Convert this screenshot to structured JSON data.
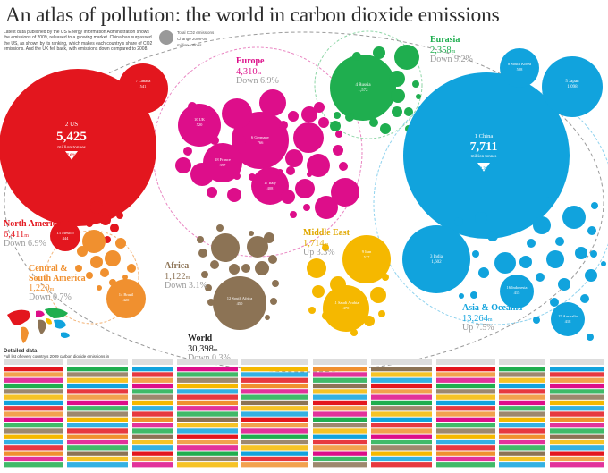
{
  "title": "An atlas of pollution: the world in carbon dioxide emissions",
  "intro": "Latest data published by the US Energy Information Administration shows the emissions of 2009, released to a growing market. China has surpassed the US, as shown by its ranking, which makes each country's share of CO2 emissions. And the UK fell back, with emissions down compared to 2008.",
  "key_notes": [
    "Total CO2 emissions",
    "Change 2008-09",
    "million tonnes"
  ],
  "detailed_data_label": "Detailed data",
  "detailed_data_note": "Full list of every country's 2009 carbon dioxide emissions in the world, in alphabetical order",
  "colors": {
    "north_america": "#e3161e",
    "central_south_america": "#f0902f",
    "europe": "#dd0e8a",
    "eurasia": "#1fae4f",
    "africa": "#8c7355",
    "middle_east": "#f5b800",
    "asia_oceania": "#11a3dd"
  },
  "chart_data": {
    "type": "bubble",
    "units": "million tonnes",
    "total": {
      "name": "World",
      "value": "30,398",
      "unit": "m",
      "change": "Down 0.3%"
    },
    "regions": [
      {
        "id": "north_america",
        "name": "North America",
        "value": "6,411",
        "unit": "m",
        "change": "Down 6.9%"
      },
      {
        "id": "central_south_america",
        "name": "Central & South America",
        "value": "1,220",
        "unit": "m",
        "change": "Down 0.7%"
      },
      {
        "id": "europe",
        "name": "Europe",
        "value": "4,310",
        "unit": "m",
        "change": "Down 6.9%"
      },
      {
        "id": "eurasia",
        "name": "Eurasia",
        "value": "2,358",
        "unit": "m",
        "change": "Down 9.2%"
      },
      {
        "id": "africa",
        "name": "Africa",
        "value": "1,122",
        "unit": "m",
        "change": "Down 3.1%"
      },
      {
        "id": "middle_east",
        "name": "Middle East",
        "value": "1,714",
        "unit": "m",
        "change": "Up 3.3%"
      },
      {
        "id": "asia_oceania",
        "name": "Asia & Oceania",
        "value": "13,264",
        "unit": "m",
        "change": "Up 7.5%"
      }
    ],
    "countries": [
      {
        "rank": 1,
        "name": "China",
        "value": 7711,
        "change": "13.3%",
        "region": "asia_oceania"
      },
      {
        "rank": 2,
        "name": "US",
        "value": 5425,
        "change": "7.0%",
        "region": "north_america"
      },
      {
        "rank": 3,
        "name": "India",
        "value": 1602,
        "change": "",
        "region": "asia_oceania"
      },
      {
        "rank": 4,
        "name": "Russia",
        "value": 1572,
        "change": "",
        "region": "eurasia"
      },
      {
        "rank": 5,
        "name": "Japan",
        "value": 1098,
        "change": "",
        "region": "asia_oceania"
      },
      {
        "rank": 6,
        "name": "Germany",
        "value": 766,
        "change": "",
        "region": "europe"
      },
      {
        "rank": 7,
        "name": "Canada",
        "value": 541,
        "change": "",
        "region": "north_america"
      },
      {
        "rank": 8,
        "name": "South Korea",
        "value": 528,
        "change": "",
        "region": "asia_oceania"
      },
      {
        "rank": 9,
        "name": "Iran",
        "value": 527,
        "change": "",
        "region": "middle_east"
      },
      {
        "rank": 10,
        "name": "UK",
        "value": 520,
        "change": "",
        "region": "europe"
      },
      {
        "rank": 11,
        "name": "Saudi Arabia",
        "value": 470,
        "change": "",
        "region": "middle_east"
      },
      {
        "rank": 12,
        "name": "South Africa",
        "value": 450,
        "change": "",
        "region": "africa"
      },
      {
        "rank": 13,
        "name": "Mexico",
        "value": 444,
        "change": "",
        "region": "north_america"
      },
      {
        "rank": 14,
        "name": "Brazil",
        "value": 420,
        "change": "",
        "region": "central_south_america"
      },
      {
        "rank": 15,
        "name": "Australia",
        "value": 418,
        "change": "",
        "region": "asia_oceania"
      },
      {
        "rank": 16,
        "name": "Indonesia",
        "value": 415,
        "change": "",
        "region": "asia_oceania"
      },
      {
        "rank": 17,
        "name": "Italy",
        "value": 408,
        "change": "",
        "region": "europe"
      },
      {
        "rank": 18,
        "name": "France",
        "value": 397,
        "change": "",
        "region": "europe"
      }
    ]
  },
  "bubble_labels": {
    "us": {
      "name": "2 US",
      "value": "5,425",
      "unit": "million tonnes",
      "change": "7.0%"
    },
    "china": {
      "name": "1 China",
      "value": "7,711",
      "unit": "million tonnes",
      "change": "13.3%"
    },
    "canada": {
      "name": "7 Canada",
      "value": "541"
    },
    "mexico": {
      "name": "13 Mexico",
      "value": "444"
    },
    "brazil": {
      "name": "14 Brazil",
      "value": "420"
    },
    "uk": {
      "name": "10 UK",
      "value": "520"
    },
    "germany": {
      "name": "6 Germany",
      "value": "766"
    },
    "france": {
      "name": "18 France",
      "value": "397"
    },
    "italy": {
      "name": "17 Italy",
      "value": "408"
    },
    "russia": {
      "name": "4 Russia",
      "value": "1,572"
    },
    "south_korea": {
      "name": "8 South Korea",
      "value": "528"
    },
    "japan": {
      "name": "5 Japan",
      "value": "1,098"
    },
    "india": {
      "name": "3 India",
      "value": "1,602"
    },
    "indonesia": {
      "name": "16 Indonesia",
      "value": "415"
    },
    "australia": {
      "name": "15 Australia",
      "value": "418"
    },
    "south_africa": {
      "name": "12 South Africa",
      "value": "450"
    },
    "iran": {
      "name": "9 Iran",
      "value": "527"
    },
    "saudi": {
      "name": "11 Saudi Arabia",
      "value": "470"
    }
  }
}
